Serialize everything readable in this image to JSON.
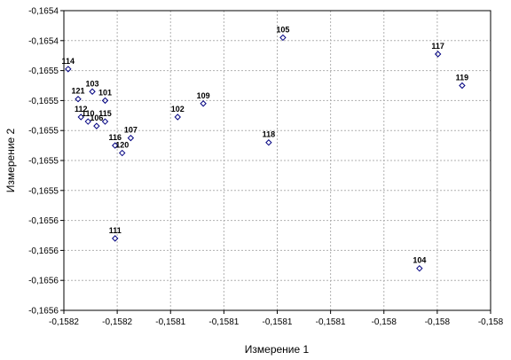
{
  "chart_data": {
    "type": "scatter",
    "title": "",
    "xlabel": "Измерение 1",
    "ylabel": "Измерение 2",
    "xlim": [
      -0.15825,
      -0.15795
    ],
    "ylim": [
      -0.16562,
      -0.16542
    ],
    "grid": true,
    "legend": "none",
    "marker_color": "#000080",
    "x_ticks": [
      "-0,1582",
      "-0,1582",
      "-0,1581",
      "-0,1581",
      "-0,1581",
      "-0,1581",
      "-0,158",
      "-0,158",
      "-0,158"
    ],
    "y_ticks": [
      "-0,1654",
      "-0,1654",
      "-0,1655",
      "-0,1655",
      "-0,1655",
      "-0,1655",
      "-0,1655",
      "-0,1656",
      "-0,1656",
      "-0,1656",
      "-0,1656"
    ],
    "points": [
      {
        "label": "105",
        "x": -0.158096,
        "y": -0.165438
      },
      {
        "label": "117",
        "x": -0.157987,
        "y": -0.165449
      },
      {
        "label": "114",
        "x": -0.158247,
        "y": -0.165459
      },
      {
        "label": "119",
        "x": -0.15797,
        "y": -0.16547
      },
      {
        "label": "103",
        "x": -0.15823,
        "y": -0.165474
      },
      {
        "label": "121",
        "x": -0.15824,
        "y": -0.165479
      },
      {
        "label": "101",
        "x": -0.158221,
        "y": -0.16548
      },
      {
        "label": "109",
        "x": -0.158152,
        "y": -0.165482
      },
      {
        "label": "112",
        "x": -0.158238,
        "y": -0.165491
      },
      {
        "label": "102",
        "x": -0.15817,
        "y": -0.165491
      },
      {
        "label": "110",
        "x": -0.158233,
        "y": -0.165494
      },
      {
        "label": "106",
        "x": -0.158227,
        "y": -0.165497
      },
      {
        "label": "115",
        "x": -0.158221,
        "y": -0.165494
      },
      {
        "label": "107",
        "x": -0.158203,
        "y": -0.165505
      },
      {
        "label": "118",
        "x": -0.158106,
        "y": -0.165508
      },
      {
        "label": "116",
        "x": -0.158214,
        "y": -0.16551
      },
      {
        "label": "120",
        "x": -0.158209,
        "y": -0.165515
      },
      {
        "label": "111",
        "x": -0.158214,
        "y": -0.165572
      },
      {
        "label": "104",
        "x": -0.158,
        "y": -0.165592
      }
    ]
  }
}
